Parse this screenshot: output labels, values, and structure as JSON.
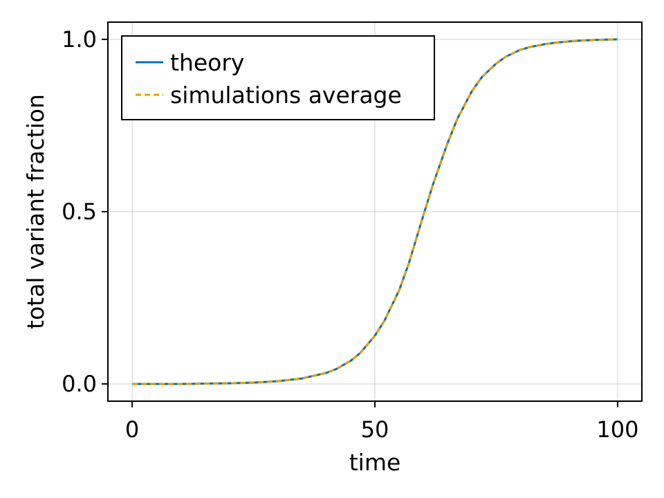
{
  "chart_data": {
    "type": "line",
    "xlabel": "time",
    "ylabel": "total variant fraction",
    "xlim": [
      -5,
      105
    ],
    "ylim": [
      -0.05,
      1.05
    ],
    "xticks": [
      0,
      50,
      100
    ],
    "xtick_labels": [
      "0",
      "50",
      "100"
    ],
    "yticks": [
      0,
      0.5,
      1
    ],
    "ytick_labels": [
      "0.0",
      "0.5",
      "1.0"
    ],
    "grid": true,
    "legend_position": "top-left",
    "x": [
      0,
      5,
      10,
      15,
      20,
      25,
      30,
      35,
      40,
      42,
      45,
      47,
      50,
      52,
      55,
      57,
      60,
      62,
      65,
      67,
      70,
      72,
      75,
      77,
      80,
      82,
      85,
      87,
      90,
      92,
      95,
      97,
      100
    ],
    "series": [
      {
        "name": "theory",
        "color": "#0072b2",
        "style": "solid",
        "values": [
          0.0,
          0.0,
          0.0,
          0.001,
          0.002,
          0.004,
          0.008,
          0.016,
          0.032,
          0.043,
          0.067,
          0.09,
          0.14,
          0.184,
          0.272,
          0.35,
          0.49,
          0.58,
          0.7,
          0.77,
          0.85,
          0.89,
          0.93,
          0.95,
          0.97,
          0.978,
          0.986,
          0.99,
          0.994,
          0.996,
          0.998,
          0.999,
          1.0
        ]
      },
      {
        "name": "simulations average",
        "color": "#e69f00",
        "style": "dashed",
        "values": [
          0.0,
          0.0,
          0.0,
          0.001,
          0.002,
          0.004,
          0.008,
          0.016,
          0.032,
          0.043,
          0.067,
          0.09,
          0.14,
          0.184,
          0.272,
          0.35,
          0.49,
          0.58,
          0.7,
          0.77,
          0.85,
          0.89,
          0.93,
          0.95,
          0.97,
          0.978,
          0.986,
          0.99,
          0.994,
          0.996,
          0.998,
          0.999,
          1.0
        ]
      }
    ]
  }
}
